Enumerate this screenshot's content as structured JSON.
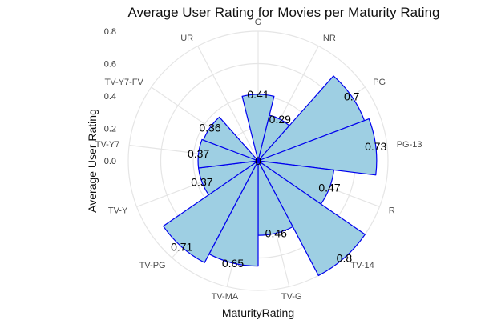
{
  "chart_data": {
    "type": "bar",
    "coordinate_system": "polar",
    "title": "Average User Rating for Movies per Maturity Rating",
    "xlabel": "MaturityRating",
    "ylabel": "Average User Rating",
    "categories": [
      "G",
      "NR",
      "PG",
      "PG-13",
      "R",
      "TV-14",
      "TV-G",
      "TV-MA",
      "TV-PG",
      "TV-Y",
      "TV-Y7",
      "TV-Y7-FV",
      "UR"
    ],
    "values": [
      0.41,
      0.29,
      0.7,
      0.73,
      0.47,
      0.8,
      0.46,
      0.65,
      0.71,
      0.37,
      0.37,
      0.36,
      0
    ],
    "value_labels": [
      "0.41",
      "0.29",
      "0.7",
      "0.73",
      "0.47",
      "0.8",
      "0.46",
      "0.65",
      "0.71",
      "0.37",
      "0.37",
      "0.36",
      "0"
    ],
    "radial_ticks": [
      "0.0",
      "0.2",
      "0.4",
      "0.6",
      "0.8"
    ],
    "radial_tick_values": [
      0,
      0.2,
      0.4,
      0.6,
      0.8
    ],
    "ylim": [
      0,
      0.8
    ],
    "grid": true,
    "legend": "none",
    "colors": {
      "fill": "#9ecfe3",
      "stroke": "#0000ee",
      "grid": "#e5e5e5",
      "text": "#4d4d4d"
    }
  }
}
